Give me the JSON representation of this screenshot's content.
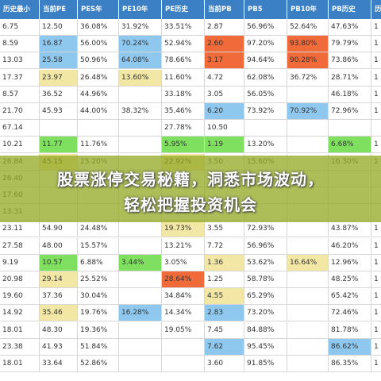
{
  "colors": {
    "header_bg": "#3b7fc4",
    "blue": "#8ec8ef",
    "red": "#f06a3a",
    "green": "#7fe060",
    "yellow": "#f3e7a6",
    "banner": "#96aa28"
  },
  "banner": {
    "line1": "股票涨停交易秘籍，洞悉市场波动，",
    "line2": "轻松把握投资机会"
  },
  "table": {
    "headers": [
      "历史最小",
      "当前PE",
      "PES年",
      "PE10年",
      "PE历史",
      "当前PB",
      "PB5",
      "PB10年",
      "PB历史",
      "历"
    ],
    "rows": [
      {
        "cells": [
          "6.75",
          "12.50",
          "36.08%",
          "31.92%",
          "33.51%",
          "2.87",
          "56.96%",
          "52.64%",
          "47.63%",
          "1"
        ],
        "fills": [
          "",
          "",
          "",
          "",
          "",
          "",
          "",
          "",
          "",
          ""
        ]
      },
      {
        "cells": [
          "8.59",
          "16.87",
          "56.00%",
          "70.24%",
          "52.94%",
          "2.60",
          "97.20%",
          "93.80%",
          "79.79%",
          "1"
        ],
        "fills": [
          "",
          "blue",
          "",
          "blue",
          "",
          "red",
          "",
          "red",
          "",
          ""
        ]
      },
      {
        "cells": [
          "13.03",
          "25.58",
          "50.96%",
          "64.08%",
          "78.66%",
          "3.17",
          "94.64%",
          "90.28%",
          "73.86%",
          "1"
        ],
        "fills": [
          "",
          "blue",
          "",
          "blue",
          "",
          "red",
          "",
          "red",
          "",
          ""
        ]
      },
      {
        "cells": [
          "17.37",
          "23.97",
          "26.48%",
          "13.60%",
          "11.60%",
          "4.72",
          "62.08%",
          "36.72%",
          "28.71%",
          "1"
        ],
        "fills": [
          "",
          "yellow",
          "",
          "yellow",
          "",
          "",
          "",
          "",
          "",
          ""
        ]
      },
      {
        "cells": [
          "8.57",
          "36.52",
          "44.96%",
          "",
          "33.18%",
          "3.05",
          "56.05%",
          "",
          "46.18%",
          "1"
        ],
        "fills": [
          "",
          "",
          "",
          "",
          "",
          "",
          "",
          "",
          "",
          ""
        ]
      },
      {
        "cells": [
          "21.70",
          "45.93",
          "44.00%",
          "38.32%",
          "35.46%",
          "6.20",
          "73.92%",
          "70.92%",
          "72.96%",
          "1"
        ],
        "fills": [
          "",
          "",
          "",
          "",
          "",
          "blue",
          "",
          "blue",
          "",
          ""
        ]
      },
      {
        "cells": [
          "67.14",
          "",
          "",
          "",
          "27.78%",
          "10.50",
          "",
          "",
          "",
          ""
        ],
        "fills": [
          "",
          "",
          "",
          "",
          "",
          "",
          "",
          "",
          "",
          ""
        ]
      },
      {
        "cells": [
          "10.21",
          "11.77",
          "11.76%",
          "",
          "5.95%",
          "1.19",
          "13.20%",
          "",
          "6.68%",
          "1"
        ],
        "fills": [
          "",
          "green",
          "",
          "",
          "green",
          "green",
          "",
          "",
          "green",
          ""
        ]
      },
      {
        "cells": [
          "26.84",
          "45.15",
          "25.20%",
          "",
          "22.92%",
          "3.50",
          "15.60%",
          "",
          "16.30%",
          "1"
        ],
        "fills": [
          "",
          "yellow",
          "",
          "",
          "yellow",
          "",
          "",
          "",
          "",
          ""
        ]
      },
      {
        "cells": [
          "26.40",
          "",
          "",
          "",
          "",
          "",
          "",
          "",
          "",
          ""
        ],
        "fills": [
          "",
          "",
          "",
          "",
          "",
          "",
          "",
          "",
          "",
          ""
        ]
      },
      {
        "cells": [
          "17.60",
          "",
          "",
          "",
          "",
          "",
          "",
          "",
          "",
          ""
        ],
        "fills": [
          "",
          "",
          "",
          "",
          "",
          "",
          "",
          "",
          "",
          ""
        ]
      },
      {
        "cells": [
          "13.31",
          "",
          "",
          "",
          "",
          "",
          "",
          "",
          "",
          ""
        ],
        "fills": [
          "",
          "",
          "",
          "",
          "",
          "",
          "",
          "",
          "",
          ""
        ]
      },
      {
        "cells": [
          "23.11",
          "54.90",
          "24.48%",
          "",
          "19.73%",
          "3.55",
          "72.93%",
          "",
          "43.87%",
          "1"
        ],
        "fills": [
          "",
          "",
          "",
          "",
          "yellow",
          "",
          "",
          "",
          "",
          ""
        ]
      },
      {
        "cells": [
          "27.58",
          "48.00",
          "15.57%",
          "",
          "13.21%",
          "7.72",
          "56.96%",
          "",
          "46.20%",
          "1"
        ],
        "fills": [
          "",
          "",
          "",
          "",
          "",
          "",
          "",
          "",
          "",
          ""
        ]
      },
      {
        "cells": [
          "9.19",
          "10.57",
          "6.88%",
          "3.44%",
          "3.05%",
          "1.36",
          "53.62%",
          "16.64%",
          "12.96%",
          "1"
        ],
        "fills": [
          "",
          "green",
          "",
          "green",
          "",
          "yellow",
          "",
          "yellow",
          "",
          ""
        ]
      },
      {
        "cells": [
          "20.98",
          "29.14",
          "25.52%",
          "",
          "28.64%",
          "1.25",
          "58.78%",
          "",
          "48.25%",
          "1"
        ],
        "fills": [
          "",
          "yellow",
          "",
          "",
          "red",
          "",
          "",
          "",
          "",
          ""
        ]
      },
      {
        "cells": [
          "19.60",
          "37.36",
          "30.04%",
          "",
          "34.84%",
          "4.55",
          "65.29%",
          "",
          "65.42%",
          "1"
        ],
        "fills": [
          "",
          "",
          "",
          "",
          "",
          "yellow",
          "",
          "",
          "",
          ""
        ]
      },
      {
        "cells": [
          "14.92",
          "35.46",
          "19.76%",
          "16.28%",
          "14.34%",
          "2.83",
          "73.20%",
          "",
          "72.46%",
          "1"
        ],
        "fills": [
          "",
          "yellow",
          "",
          "blue",
          "",
          "blue",
          "",
          "",
          "",
          ""
        ]
      },
      {
        "cells": [
          "18.01",
          "48.30",
          "19.36%",
          "",
          "19.05%",
          "7.45",
          "84.88%",
          "",
          "81.78%",
          "1"
        ],
        "fills": [
          "",
          "",
          "",
          "",
          "",
          "",
          "",
          "",
          "",
          ""
        ]
      },
      {
        "cells": [
          "23.38",
          "41.93",
          "51.84%",
          "",
          "",
          "7.62",
          "95.45%",
          "",
          "86.62%",
          "1"
        ],
        "fills": [
          "",
          "",
          "",
          "",
          "",
          "blue",
          "",
          "",
          "blue",
          ""
        ]
      },
      {
        "cells": [
          "18.01",
          "33.64",
          "52.86%",
          "",
          "",
          "3.60",
          "91.85%",
          "",
          "86.35%",
          "1"
        ],
        "fills": [
          "",
          "",
          "",
          "",
          "",
          "",
          "",
          "",
          "",
          ""
        ]
      }
    ]
  }
}
